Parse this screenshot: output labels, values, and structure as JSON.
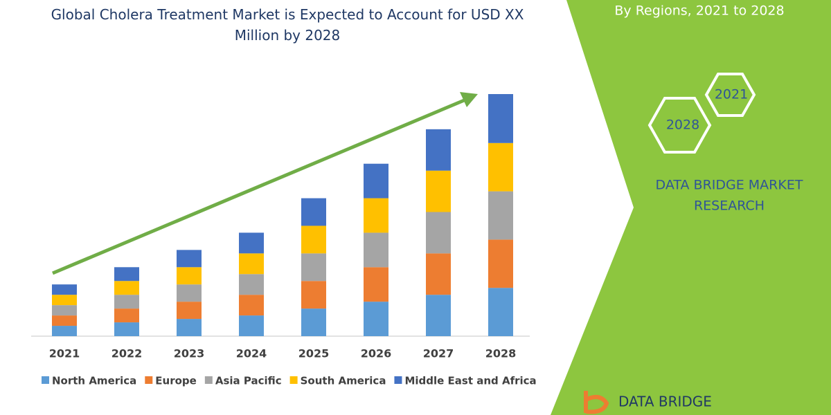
{
  "chart_data": {
    "type": "stacked-bar",
    "title": "Global Cholera Treatment Market is Expected to Account for USD XX Million by 2028",
    "categories": [
      "2021",
      "2022",
      "2023",
      "2024",
      "2025",
      "2026",
      "2027",
      "2028"
    ],
    "series": [
      {
        "name": "North America",
        "color": "#5b9bd5",
        "values": [
          15,
          20,
          25,
          30,
          40,
          50,
          60,
          70
        ]
      },
      {
        "name": "Europe",
        "color": "#ed7d31",
        "values": [
          15,
          20,
          25,
          30,
          40,
          50,
          60,
          70
        ]
      },
      {
        "name": "Asia Pacific",
        "color": "#a5a5a5",
        "values": [
          15,
          20,
          25,
          30,
          40,
          50,
          60,
          70
        ]
      },
      {
        "name": "South America",
        "color": "#ffc000",
        "values": [
          15,
          20,
          25,
          30,
          40,
          50,
          60,
          70
        ]
      },
      {
        "name": "Middle East and Africa",
        "color": "#4472c4",
        "values": [
          15,
          20,
          25,
          30,
          40,
          50,
          60,
          71
        ]
      }
    ],
    "legend": "bottom"
  },
  "sidebar": {
    "heading": "By Regions, 2021 to 2028",
    "hexagons": [
      "2021",
      "2028"
    ],
    "brand": [
      "DATA BRIDGE MARKET",
      "RESEARCH"
    ],
    "logo": "DATA BRIDGE"
  }
}
